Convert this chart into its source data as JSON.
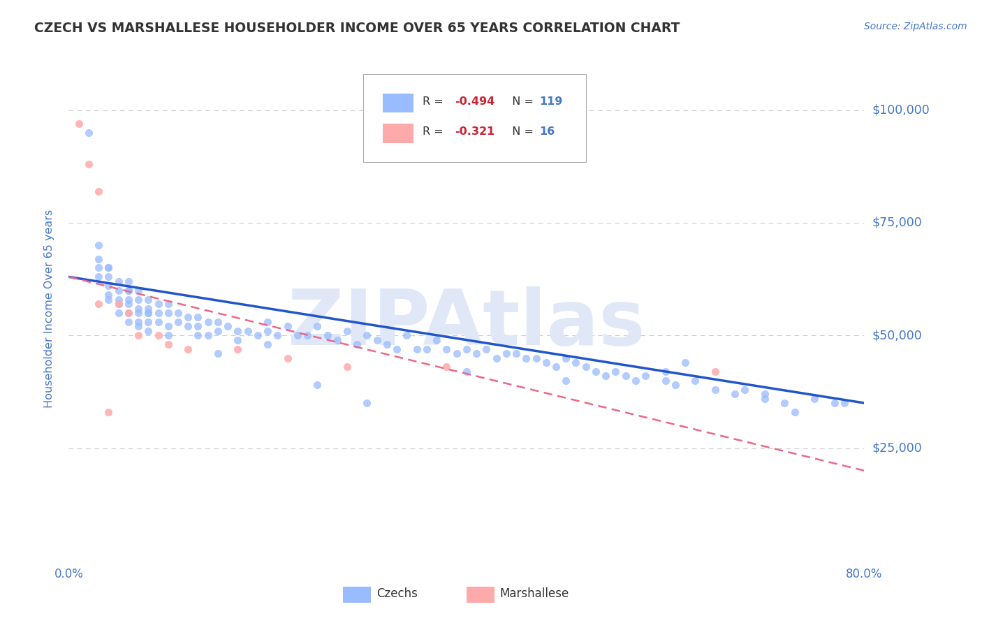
{
  "title": "CZECH VS MARSHALLESE HOUSEHOLDER INCOME OVER 65 YEARS CORRELATION CHART",
  "source_text": "Source: ZipAtlas.com",
  "ylabel": "Householder Income Over 65 years",
  "xlim": [
    0.0,
    0.8
  ],
  "ylim": [
    0,
    112000
  ],
  "xticks": [
    0.0,
    0.1,
    0.2,
    0.3,
    0.4,
    0.5,
    0.6,
    0.7,
    0.8
  ],
  "ytick_values": [
    0,
    25000,
    50000,
    75000,
    100000
  ],
  "grid_color": "#cccccc",
  "background_color": "#ffffff",
  "blue_color": "#99bbff",
  "pink_color": "#ffaaaa",
  "blue_line_color": "#2255cc",
  "pink_line_color": "#ee6688",
  "czech_R": "-0.494",
  "czech_N": "119",
  "marshallese_R": "-0.321",
  "marshallese_N": "16",
  "watermark": "ZIPAtlas",
  "title_color": "#333333",
  "axis_color": "#4477cc",
  "legend_R_color": "#cc2233",
  "legend_N_color": "#4477cc",
  "czech_scatter_x": [
    0.02,
    0.03,
    0.03,
    0.03,
    0.03,
    0.04,
    0.04,
    0.04,
    0.04,
    0.04,
    0.05,
    0.05,
    0.05,
    0.05,
    0.05,
    0.06,
    0.06,
    0.06,
    0.06,
    0.06,
    0.06,
    0.07,
    0.07,
    0.07,
    0.07,
    0.07,
    0.07,
    0.08,
    0.08,
    0.08,
    0.08,
    0.08,
    0.09,
    0.09,
    0.09,
    0.1,
    0.1,
    0.1,
    0.11,
    0.11,
    0.12,
    0.12,
    0.13,
    0.13,
    0.13,
    0.14,
    0.14,
    0.15,
    0.15,
    0.16,
    0.17,
    0.17,
    0.18,
    0.19,
    0.2,
    0.2,
    0.21,
    0.22,
    0.23,
    0.24,
    0.25,
    0.26,
    0.27,
    0.28,
    0.29,
    0.3,
    0.31,
    0.32,
    0.33,
    0.34,
    0.35,
    0.36,
    0.37,
    0.38,
    0.39,
    0.4,
    0.41,
    0.42,
    0.43,
    0.44,
    0.45,
    0.46,
    0.47,
    0.48,
    0.49,
    0.5,
    0.51,
    0.52,
    0.53,
    0.54,
    0.55,
    0.56,
    0.57,
    0.58,
    0.6,
    0.61,
    0.62,
    0.63,
    0.65,
    0.67,
    0.68,
    0.7,
    0.72,
    0.73,
    0.75,
    0.77,
    0.78,
    0.25,
    0.3,
    0.15,
    0.1,
    0.08,
    0.06,
    0.04,
    0.2,
    0.4,
    0.5,
    0.6,
    0.7
  ],
  "czech_scatter_y": [
    95000,
    70000,
    67000,
    65000,
    63000,
    65000,
    63000,
    61000,
    59000,
    58000,
    62000,
    60000,
    58000,
    57000,
    55000,
    62000,
    60000,
    58000,
    57000,
    55000,
    53000,
    60000,
    58000,
    56000,
    55000,
    53000,
    52000,
    58000,
    56000,
    55000,
    53000,
    51000,
    57000,
    55000,
    53000,
    57000,
    55000,
    52000,
    55000,
    53000,
    54000,
    52000,
    54000,
    52000,
    50000,
    53000,
    50000,
    53000,
    51000,
    52000,
    51000,
    49000,
    51000,
    50000,
    53000,
    51000,
    50000,
    52000,
    50000,
    50000,
    52000,
    50000,
    49000,
    51000,
    48000,
    50000,
    49000,
    48000,
    47000,
    50000,
    47000,
    47000,
    49000,
    47000,
    46000,
    47000,
    46000,
    47000,
    45000,
    46000,
    46000,
    45000,
    45000,
    44000,
    43000,
    45000,
    44000,
    43000,
    42000,
    41000,
    42000,
    41000,
    40000,
    41000,
    40000,
    39000,
    44000,
    40000,
    38000,
    37000,
    38000,
    36000,
    35000,
    33000,
    36000,
    35000,
    35000,
    39000,
    35000,
    46000,
    50000,
    55000,
    60000,
    65000,
    48000,
    42000,
    40000,
    42000,
    37000
  ],
  "marshallese_scatter_x": [
    0.01,
    0.02,
    0.03,
    0.03,
    0.04,
    0.05,
    0.06,
    0.07,
    0.09,
    0.1,
    0.12,
    0.17,
    0.22,
    0.28,
    0.38,
    0.65
  ],
  "marshallese_scatter_y": [
    97000,
    88000,
    82000,
    57000,
    33000,
    57000,
    55000,
    50000,
    50000,
    48000,
    47000,
    47000,
    45000,
    43000,
    43000,
    42000
  ],
  "blue_line_x": [
    0.0,
    0.8
  ],
  "blue_line_y": [
    63000,
    35000
  ],
  "pink_line_x": [
    0.0,
    0.8
  ],
  "pink_line_y": [
    63000,
    20000
  ]
}
